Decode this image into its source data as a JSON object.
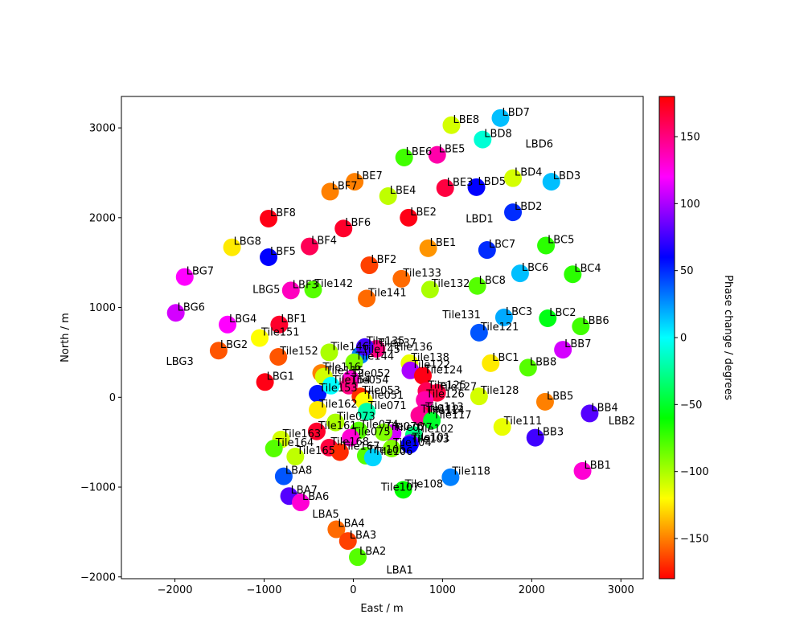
{
  "chart_data": {
    "type": "scatter",
    "xlabel": "East / m",
    "ylabel": "North / m",
    "xlim": [
      -2600,
      3250
    ],
    "ylim": [
      -2020,
      3350
    ],
    "xticks": [
      -2000,
      -1000,
      0,
      1000,
      2000,
      3000
    ],
    "yticks": [
      -2000,
      -1000,
      0,
      1000,
      2000,
      3000
    ],
    "colorbar": {
      "label": "Phase change / degrees",
      "min": -180,
      "max": 180,
      "ticks": [
        -150,
        -100,
        -50,
        0,
        50,
        100,
        150
      ],
      "colormap": "hsv"
    },
    "grid": false,
    "points": [
      {
        "name": "LBE8",
        "x": 1100,
        "y": 3030,
        "phase": -110
      },
      {
        "name": "LBD7",
        "x": 1650,
        "y": 3110,
        "phase": 15
      },
      {
        "name": "LBD8",
        "x": 1450,
        "y": 2870,
        "phase": -10
      },
      {
        "name": "LBD6",
        "x": null,
        "y": null,
        "phase": null,
        "label_x": 1930,
        "label_y": 2780
      },
      {
        "name": "LBE6",
        "x": 570,
        "y": 2670,
        "phase": -75
      },
      {
        "name": "LBE5",
        "x": 940,
        "y": 2700,
        "phase": 140
      },
      {
        "name": "LBD4",
        "x": 1790,
        "y": 2440,
        "phase": -110
      },
      {
        "name": "LBD3",
        "x": 2220,
        "y": 2400,
        "phase": 15
      },
      {
        "name": "LBE7",
        "x": 15,
        "y": 2400,
        "phase": -150
      },
      {
        "name": "LBF7",
        "x": -260,
        "y": 2290,
        "phase": -150
      },
      {
        "name": "LBE4",
        "x": 390,
        "y": 2240,
        "phase": -105
      },
      {
        "name": "LBE3",
        "x": 1030,
        "y": 2330,
        "phase": 165
      },
      {
        "name": "LBD5",
        "x": 1380,
        "y": 2340,
        "phase": 60
      },
      {
        "name": "LBD2",
        "x": 1790,
        "y": 2060,
        "phase": 50
      },
      {
        "name": "LBD1",
        "x": null,
        "y": null,
        "phase": null,
        "label_x": 1260,
        "label_y": 1950
      },
      {
        "name": "LBF8",
        "x": -950,
        "y": 1990,
        "phase": 175
      },
      {
        "name": "LBE2",
        "x": 620,
        "y": 2000,
        "phase": 175
      },
      {
        "name": "LBF6",
        "x": -110,
        "y": 1880,
        "phase": 170
      },
      {
        "name": "LBG8",
        "x": -1360,
        "y": 1670,
        "phase": -125
      },
      {
        "name": "LBF4",
        "x": -490,
        "y": 1680,
        "phase": 160
      },
      {
        "name": "LBE1",
        "x": 840,
        "y": 1660,
        "phase": -145
      },
      {
        "name": "LBC7",
        "x": 1500,
        "y": 1640,
        "phase": 50
      },
      {
        "name": "LBC5",
        "x": 2160,
        "y": 1690,
        "phase": -70
      },
      {
        "name": "LBF5",
        "x": -950,
        "y": 1560,
        "phase": 60
      },
      {
        "name": "LBF2",
        "x": 180,
        "y": 1470,
        "phase": -165
      },
      {
        "name": "LBC6",
        "x": 1870,
        "y": 1380,
        "phase": 15
      },
      {
        "name": "LBC4",
        "x": 2460,
        "y": 1370,
        "phase": -70
      },
      {
        "name": "LBG7",
        "x": -1890,
        "y": 1340,
        "phase": 120
      },
      {
        "name": "Tile133",
        "x": 540,
        "y": 1320,
        "phase": -155
      },
      {
        "name": "LBC8",
        "x": 1390,
        "y": 1240,
        "phase": -80
      },
      {
        "name": "LBG5",
        "x": null,
        "y": null,
        "phase": null,
        "label_x": -1130,
        "label_y": 1160
      },
      {
        "name": "LBF3",
        "x": -700,
        "y": 1190,
        "phase": 135
      },
      {
        "name": "Tile142",
        "x": -450,
        "y": 1200,
        "phase": -80
      },
      {
        "name": "Tile132",
        "x": 860,
        "y": 1200,
        "phase": -100
      },
      {
        "name": "Tile141",
        "x": 150,
        "y": 1100,
        "phase": -155
      },
      {
        "name": "LBG6",
        "x": -1990,
        "y": 940,
        "phase": 110
      },
      {
        "name": "Tile131",
        "x": null,
        "y": null,
        "phase": null,
        "label_x": 1000,
        "label_y": 880
      },
      {
        "name": "LBC3",
        "x": 1690,
        "y": 890,
        "phase": 20
      },
      {
        "name": "LBC2",
        "x": 2180,
        "y": 880,
        "phase": -55
      },
      {
        "name": "LBB6",
        "x": 2550,
        "y": 790,
        "phase": -75
      },
      {
        "name": "LBG4",
        "x": -1410,
        "y": 810,
        "phase": 120
      },
      {
        "name": "LBF1",
        "x": -830,
        "y": 810,
        "phase": 170
      },
      {
        "name": "Tile151",
        "x": -1050,
        "y": 660,
        "phase": -120
      },
      {
        "name": "Tile121",
        "x": 1410,
        "y": 720,
        "phase": 40
      },
      {
        "name": "LBG2",
        "x": -1510,
        "y": 520,
        "phase": -160
      },
      {
        "name": "Tile152",
        "x": -840,
        "y": 450,
        "phase": -160
      },
      {
        "name": "LBB7",
        "x": 2350,
        "y": 530,
        "phase": 110
      },
      {
        "name": "LBG3",
        "x": null,
        "y": null,
        "phase": null,
        "label_x": -2100,
        "label_y": 360
      },
      {
        "name": "LBC1",
        "x": 1540,
        "y": 380,
        "phase": -125
      },
      {
        "name": "LBB8",
        "x": 1960,
        "y": 330,
        "phase": -80
      },
      {
        "name": "Tile138",
        "x": 630,
        "y": 380,
        "phase": -115
      },
      {
        "name": "Tile122",
        "x": 640,
        "y": 300,
        "phase": 100
      },
      {
        "name": "Tile124",
        "x": 780,
        "y": 240,
        "phase": 175
      },
      {
        "name": "LBG1",
        "x": -990,
        "y": 170,
        "phase": 175
      },
      {
        "name": "Tile145",
        "x": 80,
        "y": 470,
        "phase": 30
      },
      {
        "name": "Tile144",
        "x": 10,
        "y": 390,
        "phase": -90
      },
      {
        "name": "Tile137",
        "x": 260,
        "y": 540,
        "phase": 150
      },
      {
        "name": "Tile136",
        "x": null,
        "y": null,
        "phase": null,
        "label_x": 460,
        "label_y": 520
      },
      {
        "name": "Tile135",
        "x": 130,
        "y": 560,
        "phase": 75
      },
      {
        "name": "Tile146",
        "x": -270,
        "y": 500,
        "phase": -100
      },
      {
        "name": "Tile116",
        "x": -360,
        "y": 270,
        "phase": -150
      },
      {
        "name": "Tile115",
        "x": -330,
        "y": 230,
        "phase": -110
      },
      {
        "name": "Tile052",
        "x": -30,
        "y": 200,
        "phase": 130
      },
      {
        "name": "Tile054",
        "x": -50,
        "y": 130,
        "phase": 150
      },
      {
        "name": "Tile125",
        "x": 820,
        "y": 70,
        "phase": 160
      },
      {
        "name": "Tile127",
        "x": 940,
        "y": 50,
        "phase": 165
      },
      {
        "name": "Tile128",
        "x": 1410,
        "y": 10,
        "phase": -110
      },
      {
        "name": "Tile126",
        "x": 800,
        "y": -30,
        "phase": 140
      },
      {
        "name": "LBB5",
        "x": 2150,
        "y": -50,
        "phase": -150
      },
      {
        "name": "LBB4",
        "x": 2650,
        "y": -180,
        "phase": 80
      },
      {
        "name": "LBB2",
        "x": null,
        "y": null,
        "phase": null,
        "label_x": 2860,
        "label_y": -300
      },
      {
        "name": "Tile153",
        "x": -400,
        "y": 40,
        "phase": 55
      },
      {
        "name": "Tile154",
        "x": -250,
        "y": 130,
        "phase": 0
      },
      {
        "name": "Tile053",
        "x": 80,
        "y": 10,
        "phase": -170
      },
      {
        "name": "Tile051",
        "x": 120,
        "y": -40,
        "phase": -120
      },
      {
        "name": "Tile162",
        "x": -400,
        "y": -140,
        "phase": -125
      },
      {
        "name": "Tile071",
        "x": 150,
        "y": -160,
        "phase": -20
      },
      {
        "name": "Tile113",
        "x": 790,
        "y": -170,
        "phase": 140
      },
      {
        "name": "Tile114",
        "x": 800,
        "y": -210,
        "phase": 165
      },
      {
        "name": "Tile112",
        "x": 740,
        "y": -200,
        "phase": 145
      },
      {
        "name": "Tile117",
        "x": 880,
        "y": -260,
        "phase": -50
      },
      {
        "name": "Tile111",
        "x": 1670,
        "y": -330,
        "phase": -115
      },
      {
        "name": "LBB3",
        "x": 2040,
        "y": -450,
        "phase": 75
      },
      {
        "name": "Tile073",
        "x": -200,
        "y": -280,
        "phase": -100
      },
      {
        "name": "Tile074",
        "x": 60,
        "y": -370,
        "phase": -80
      },
      {
        "name": "Tile077",
        "x": 440,
        "y": -400,
        "phase": 110
      },
      {
        "name": "Tile076",
        "x": 340,
        "y": -390,
        "phase": -90
      },
      {
        "name": "Tile161",
        "x": -410,
        "y": -380,
        "phase": 170
      },
      {
        "name": "Tile075",
        "x": -30,
        "y": -450,
        "phase": 130
      },
      {
        "name": "Tile102",
        "x": 680,
        "y": -420,
        "phase": -30
      },
      {
        "name": "Tile101",
        "x": 640,
        "y": -510,
        "phase": 90
      },
      {
        "name": "Tile103",
        "x": 630,
        "y": -530,
        "phase": 60
      },
      {
        "name": "Tile163",
        "x": -810,
        "y": -470,
        "phase": -110
      },
      {
        "name": "Tile164",
        "x": -890,
        "y": -570,
        "phase": -80
      },
      {
        "name": "Tile168",
        "x": -270,
        "y": -560,
        "phase": 165
      },
      {
        "name": "Tile104",
        "x": 430,
        "y": -570,
        "phase": -90
      },
      {
        "name": "Tile167",
        "x": -150,
        "y": -610,
        "phase": -170
      },
      {
        "name": "Tile165",
        "x": -650,
        "y": -660,
        "phase": -105
      },
      {
        "name": "Tile105",
        "x": 140,
        "y": -650,
        "phase": -80
      },
      {
        "name": "Tile106",
        "x": 220,
        "y": -670,
        "phase": 10
      },
      {
        "name": "LBB1",
        "x": 2570,
        "y": -820,
        "phase": 130
      },
      {
        "name": "LBA8",
        "x": -780,
        "y": -880,
        "phase": 40
      },
      {
        "name": "Tile118",
        "x": 1090,
        "y": -890,
        "phase": 30
      },
      {
        "name": "Tile108",
        "x": 560,
        "y": -1030,
        "phase": -60
      },
      {
        "name": "Tile107",
        "x": null,
        "y": null,
        "phase": null,
        "label_x": 310,
        "label_y": -1040
      },
      {
        "name": "LBA7",
        "x": -720,
        "y": -1100,
        "phase": 80
      },
      {
        "name": "LBA6",
        "x": -590,
        "y": -1170,
        "phase": 130
      },
      {
        "name": "LBA5",
        "x": null,
        "y": null,
        "phase": null,
        "label_x": -460,
        "label_y": -1340
      },
      {
        "name": "LBA4",
        "x": -190,
        "y": -1470,
        "phase": -155
      },
      {
        "name": "LBA3",
        "x": -60,
        "y": -1600,
        "phase": -165
      },
      {
        "name": "LBA2",
        "x": 50,
        "y": -1780,
        "phase": -80
      },
      {
        "name": "LBA1",
        "x": null,
        "y": null,
        "phase": null,
        "label_x": 370,
        "label_y": -1960
      }
    ]
  }
}
